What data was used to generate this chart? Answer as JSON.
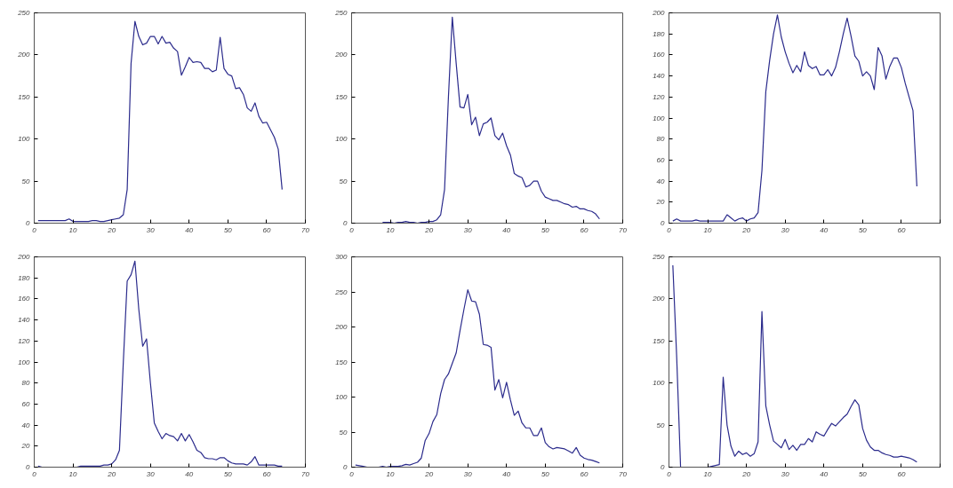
{
  "chart_data": [
    {
      "type": "line",
      "x": [
        1,
        2,
        3,
        4,
        5,
        6,
        7,
        8,
        9,
        10,
        11,
        12,
        13,
        14,
        15,
        16,
        17,
        18,
        19,
        20,
        21,
        22,
        23,
        24,
        25,
        26,
        27,
        28,
        29,
        30,
        31,
        32,
        33,
        34,
        35,
        36,
        37,
        38,
        39,
        40,
        41,
        42,
        43,
        44,
        45,
        46,
        47,
        48,
        49,
        50,
        51,
        52,
        53,
        54,
        55,
        56,
        57,
        58,
        59,
        60,
        61,
        62,
        63,
        64
      ],
      "color": "#2b2b8c",
      "xlim": [
        0,
        70
      ],
      "ylim": [
        0,
        250
      ],
      "xticks": [
        0,
        10,
        20,
        30,
        40,
        50,
        60,
        70
      ],
      "yticks": [
        0,
        50,
        100,
        150,
        200,
        250
      ],
      "values": [
        3,
        3,
        3,
        3,
        3,
        3,
        3,
        3,
        5,
        2,
        2,
        2,
        2,
        2,
        3,
        3,
        2,
        2,
        3,
        4,
        5,
        6,
        10,
        40,
        190,
        240,
        222,
        212,
        214,
        222,
        222,
        213,
        222,
        214,
        215,
        208,
        204,
        176,
        186,
        197,
        191,
        192,
        191,
        184,
        184,
        180,
        182,
        221,
        184,
        177,
        175,
        160,
        161,
        153,
        137,
        133,
        143,
        127,
        119,
        120,
        111,
        102,
        88,
        40
      ]
    },
    {
      "type": "line",
      "x": [
        8,
        9,
        10,
        11,
        12,
        13,
        14,
        15,
        16,
        17,
        18,
        19,
        20,
        21,
        22,
        23,
        24,
        25,
        26,
        27,
        28,
        29,
        30,
        31,
        32,
        33,
        34,
        35,
        36,
        37,
        38,
        39,
        40,
        41,
        42,
        43,
        44,
        45,
        46,
        47,
        48,
        49,
        50,
        51,
        52,
        53,
        54,
        55,
        56,
        57,
        58,
        59,
        60,
        61,
        62,
        63,
        64
      ],
      "color": "#2b2b8c",
      "xlim": [
        0,
        70
      ],
      "ylim": [
        0,
        250
      ],
      "xticks": [
        0,
        10,
        20,
        30,
        40,
        50,
        60,
        70
      ],
      "yticks": [
        0,
        50,
        100,
        150,
        200,
        250
      ],
      "values": [
        1,
        1,
        1,
        0,
        1,
        1,
        2,
        1,
        1,
        0,
        1,
        1,
        2,
        2,
        4,
        10,
        40,
        150,
        245,
        190,
        138,
        137,
        153,
        117,
        126,
        104,
        118,
        120,
        125,
        104,
        99,
        107,
        92,
        81,
        59,
        56,
        54,
        43,
        45,
        50,
        50,
        38,
        31,
        29,
        27,
        27,
        25,
        23,
        22,
        19,
        20,
        17,
        17,
        15,
        14,
        11,
        5
      ]
    },
    {
      "type": "line",
      "x": [
        1,
        2,
        3,
        4,
        5,
        6,
        7,
        8,
        9,
        10,
        11,
        12,
        13,
        14,
        15,
        16,
        17,
        18,
        19,
        20,
        21,
        22,
        23,
        24,
        25,
        26,
        27,
        28,
        29,
        30,
        31,
        32,
        33,
        34,
        35,
        36,
        37,
        38,
        39,
        40,
        41,
        42,
        43,
        44,
        45,
        46,
        47,
        48,
        49,
        50,
        51,
        52,
        53,
        54,
        55,
        56,
        57,
        58,
        59,
        60,
        61,
        62,
        63,
        64
      ],
      "color": "#2b2b8c",
      "xlim": [
        0,
        70
      ],
      "ylim": [
        0,
        200
      ],
      "xticks": [
        0,
        10,
        20,
        30,
        40,
        50,
        60,
        {
          "value": 70,
          "label": null
        }
      ],
      "yticks": [
        0,
        20,
        40,
        60,
        80,
        100,
        120,
        140,
        160,
        180,
        200
      ],
      "values": [
        2,
        4,
        2,
        2,
        2,
        2,
        3,
        2,
        2,
        2,
        2,
        2,
        2,
        2,
        8,
        5,
        2,
        4,
        5,
        2,
        4,
        5,
        10,
        50,
        125,
        155,
        180,
        198,
        177,
        163,
        152,
        143,
        150,
        144,
        163,
        150,
        147,
        149,
        141,
        141,
        146,
        140,
        148,
        163,
        180,
        195,
        178,
        159,
        154,
        140,
        144,
        140,
        127,
        167,
        159,
        137,
        149,
        157,
        157,
        148,
        133,
        120,
        107,
        35
      ]
    },
    {
      "type": "line",
      "x": [
        1,
        2,
        3,
        4,
        5,
        6,
        7,
        8,
        9,
        10,
        11,
        12,
        13,
        14,
        15,
        16,
        17,
        18,
        19,
        20,
        21,
        22,
        23,
        24,
        25,
        26,
        27,
        28,
        29,
        30,
        31,
        32,
        33,
        34,
        35,
        36,
        37,
        38,
        39,
        40,
        41,
        42,
        43,
        44,
        45,
        46,
        47,
        48,
        49,
        50,
        51,
        52,
        53,
        54,
        55,
        56,
        57,
        58,
        59,
        60,
        61,
        62,
        63,
        64
      ],
      "color": "#2b2b8c",
      "xlim": [
        0,
        70
      ],
      "ylim": [
        0,
        200
      ],
      "xticks": [
        0,
        10,
        20,
        30,
        40,
        50,
        60,
        70
      ],
      "yticks": [
        0,
        20,
        40,
        60,
        80,
        100,
        120,
        140,
        160,
        180,
        200
      ],
      "values": [
        1,
        0,
        null,
        null,
        null,
        null,
        null,
        null,
        null,
        null,
        0,
        1,
        1,
        1,
        1,
        1,
        1,
        2,
        2,
        3,
        7,
        16,
        100,
        177,
        183,
        196,
        150,
        115,
        122,
        80,
        42,
        34,
        27,
        32,
        30,
        29,
        25,
        32,
        25,
        31,
        24,
        16,
        14,
        9,
        8,
        8,
        7,
        9,
        9,
        6,
        4,
        3,
        3,
        3,
        2,
        5,
        10,
        2,
        2,
        2,
        2,
        2,
        1,
        1
      ]
    },
    {
      "type": "line",
      "x": [
        1,
        2,
        3,
        4,
        5,
        6,
        7,
        8,
        9,
        10,
        11,
        12,
        13,
        14,
        15,
        16,
        17,
        18,
        19,
        20,
        21,
        22,
        23,
        24,
        25,
        26,
        27,
        28,
        29,
        30,
        31,
        32,
        33,
        34,
        35,
        36,
        37,
        38,
        39,
        40,
        41,
        42,
        43,
        44,
        45,
        46,
        47,
        48,
        49,
        50,
        51,
        52,
        53,
        54,
        55,
        56,
        57,
        58,
        59,
        60,
        61,
        62,
        63,
        64
      ],
      "color": "#2b2b8c",
      "xlim": [
        0,
        70
      ],
      "ylim": [
        0,
        300
      ],
      "xticks": [
        0,
        10,
        20,
        30,
        40,
        50,
        60,
        70
      ],
      "yticks": [
        0,
        50,
        100,
        150,
        200,
        250,
        300
      ],
      "values": [
        3,
        2,
        1,
        0,
        0,
        0,
        0,
        1,
        0,
        1,
        1,
        1,
        2,
        4,
        3,
        5,
        7,
        13,
        38,
        48,
        65,
        75,
        105,
        125,
        133,
        148,
        163,
        195,
        225,
        253,
        237,
        236,
        218,
        175,
        174,
        171,
        110,
        125,
        99,
        121,
        96,
        74,
        80,
        63,
        56,
        56,
        45,
        45,
        56,
        35,
        29,
        26,
        28,
        27,
        26,
        23,
        20,
        28,
        17,
        13,
        11,
        10,
        8,
        6
      ]
    },
    {
      "type": "line",
      "x": [
        1,
        2,
        3,
        4,
        5,
        6,
        7,
        8,
        9,
        10,
        11,
        12,
        13,
        14,
        15,
        16,
        17,
        18,
        19,
        20,
        21,
        22,
        23,
        24,
        25,
        26,
        27,
        28,
        29,
        30,
        31,
        32,
        33,
        34,
        35,
        36,
        37,
        38,
        39,
        40,
        41,
        42,
        43,
        44,
        45,
        46,
        47,
        48,
        49,
        50,
        51,
        52,
        53,
        54,
        55,
        56,
        57,
        58,
        59,
        60,
        61,
        62,
        63,
        64
      ],
      "color": "#2b2b8c",
      "xlim": [
        0,
        70
      ],
      "ylim": [
        0,
        250
      ],
      "xticks": [
        0,
        10,
        20,
        30,
        40,
        50,
        60,
        {
          "value": 70,
          "label": null
        }
      ],
      "yticks": [
        0,
        50,
        100,
        150,
        200,
        250
      ],
      "values": [
        240,
        130,
        0,
        null,
        null,
        null,
        null,
        null,
        0,
        0,
        1,
        2,
        3,
        107,
        50,
        25,
        13,
        19,
        15,
        17,
        13,
        16,
        30,
        185,
        73,
        50,
        31,
        27,
        23,
        33,
        21,
        26,
        20,
        27,
        27,
        34,
        30,
        42,
        39,
        37,
        45,
        52,
        49,
        54,
        59,
        63,
        72,
        80,
        74,
        46,
        32,
        24,
        20,
        20,
        17,
        15,
        14,
        12,
        12,
        13,
        12,
        11,
        9,
        6
      ]
    }
  ]
}
